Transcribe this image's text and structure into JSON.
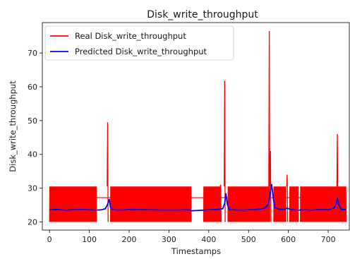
{
  "chart_data": {
    "type": "line",
    "title": "Disk_write_throughput",
    "xlabel": "Timestamps",
    "ylabel": "Disk_write_throughput",
    "xlim": [
      -18,
      753
    ],
    "ylim": [
      17.6,
      79
    ],
    "xticks": [
      0,
      100,
      200,
      300,
      400,
      500,
      600,
      700
    ],
    "yticks": [
      20,
      30,
      40,
      50,
      60,
      70
    ],
    "grid": false,
    "legend": "top-left",
    "series": [
      {
        "name": "Real Disk_write_throughput",
        "color": "#ff0000",
        "band": {
          "low": 20,
          "high": 30.5
        },
        "dense_segments": [
          [
            0,
            118
          ],
          [
            153,
            356
          ],
          [
            387,
            430
          ],
          [
            448,
            552
          ],
          [
            563,
            594
          ],
          [
            603,
            625
          ],
          [
            630,
            745
          ]
        ],
        "gap_level": 27.2,
        "spikes": [
          {
            "x": 146,
            "y": 49.5
          },
          {
            "x": 430,
            "y": 31
          },
          {
            "x": 440,
            "y": 61.8
          },
          {
            "x": 552,
            "y": 76.5
          },
          {
            "x": 555,
            "y": 41
          },
          {
            "x": 597,
            "y": 34
          },
          {
            "x": 723,
            "y": 46
          }
        ]
      },
      {
        "name": "Predicted Disk_write_throughput",
        "color": "#0000ff",
        "x": [
          0,
          20,
          40,
          60,
          80,
          100,
          118,
          130,
          140,
          146,
          150,
          153,
          160,
          180,
          200,
          250,
          300,
          350,
          356,
          370,
          387,
          400,
          420,
          435,
          440,
          443,
          447,
          452,
          460,
          480,
          500,
          520,
          540,
          550,
          555,
          558,
          562,
          566,
          575,
          590,
          597,
          603,
          610,
          625,
          640,
          660,
          680,
          700,
          715,
          720,
          723,
          727,
          732,
          745
        ],
        "y": [
          23.6,
          23.7,
          23.5,
          23.6,
          23.7,
          23.6,
          23.5,
          23.6,
          23.9,
          25.2,
          26.8,
          24.4,
          23.6,
          23.5,
          23.7,
          23.6,
          23.5,
          23.6,
          23.3,
          23.4,
          23.5,
          23.6,
          23.7,
          23.9,
          25.5,
          28.5,
          25.0,
          23.7,
          23.6,
          23.5,
          23.6,
          23.7,
          24.0,
          25.3,
          29.0,
          31.2,
          27.0,
          24.3,
          23.8,
          23.7,
          24.1,
          23.8,
          23.6,
          23.5,
          23.6,
          23.5,
          23.7,
          23.6,
          24.2,
          25.2,
          27.2,
          25.0,
          23.8,
          23.6
        ]
      }
    ]
  }
}
